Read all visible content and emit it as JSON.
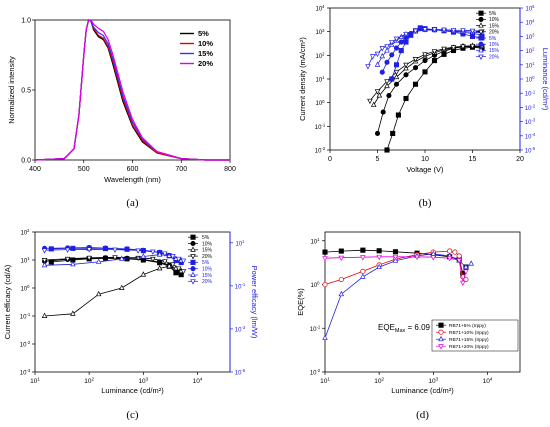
{
  "figure": {
    "panel_labels": [
      "(a)",
      "(b)",
      "(c)",
      "(d)"
    ]
  },
  "chart_data": [
    {
      "panel": "a",
      "type": "line",
      "xlabel": "Wavelength (nm)",
      "ylabel": "Normalized intensity",
      "xlim": [
        400,
        800
      ],
      "ylim": [
        0.0,
        1.0
      ],
      "xticks": [
        400,
        500,
        600,
        700,
        800
      ],
      "yticks": [
        0.0,
        0.5,
        1.0
      ],
      "legend_position": "top-right",
      "series": [
        {
          "name": "5%",
          "color": "#000000",
          "x": [
            400,
            460,
            480,
            490,
            500,
            505,
            510,
            515,
            520,
            530,
            540,
            550,
            560,
            570,
            580,
            600,
            620,
            650,
            700,
            750,
            800
          ],
          "y": [
            0,
            0.01,
            0.08,
            0.32,
            0.75,
            0.93,
            1.0,
            0.99,
            0.93,
            0.88,
            0.86,
            0.8,
            0.68,
            0.55,
            0.42,
            0.24,
            0.13,
            0.05,
            0.01,
            0,
            0
          ]
        },
        {
          "name": "10%",
          "color": "#e00000",
          "x": [
            400,
            460,
            480,
            490,
            500,
            505,
            510,
            515,
            520,
            530,
            540,
            550,
            560,
            570,
            580,
            600,
            620,
            650,
            700,
            750,
            800
          ],
          "y": [
            0,
            0.01,
            0.08,
            0.32,
            0.75,
            0.93,
            1.0,
            0.99,
            0.94,
            0.89,
            0.87,
            0.81,
            0.7,
            0.57,
            0.44,
            0.25,
            0.14,
            0.05,
            0.01,
            0,
            0
          ]
        },
        {
          "name": "15%",
          "color": "#3030ff",
          "x": [
            400,
            460,
            480,
            490,
            500,
            505,
            510,
            515,
            520,
            530,
            540,
            550,
            560,
            570,
            580,
            600,
            620,
            650,
            700,
            750,
            800
          ],
          "y": [
            0,
            0.01,
            0.08,
            0.32,
            0.75,
            0.93,
            1.0,
            0.99,
            0.95,
            0.91,
            0.89,
            0.83,
            0.72,
            0.59,
            0.46,
            0.27,
            0.15,
            0.06,
            0.01,
            0,
            0
          ]
        },
        {
          "name": "20%",
          "color": "#e000e0",
          "x": [
            400,
            460,
            480,
            490,
            500,
            505,
            510,
            515,
            520,
            530,
            540,
            550,
            560,
            570,
            580,
            600,
            620,
            650,
            700,
            750,
            800
          ],
          "y": [
            0,
            0.01,
            0.08,
            0.32,
            0.75,
            0.93,
            1.0,
            1.0,
            0.97,
            0.94,
            0.92,
            0.86,
            0.75,
            0.62,
            0.49,
            0.29,
            0.16,
            0.06,
            0.01,
            0,
            0
          ]
        }
      ]
    },
    {
      "panel": "b",
      "type": "line",
      "xlabel": "Voltage (V)",
      "ylabel": "Current density (mA/cm²)",
      "y2label": "Luminance (cd/m²)",
      "xlim": [
        0,
        20
      ],
      "ylim_log10": [
        -2,
        4
      ],
      "y2lim_log10": [
        -5,
        5
      ],
      "xticks": [
        0,
        5,
        10,
        15,
        20
      ],
      "yscale": "log",
      "y2scale": "log",
      "legend_position": "top-left",
      "series": [
        {
          "name": "5%",
          "axis": "left",
          "color": "#000000",
          "marker": "square",
          "x": [
            6,
            6.6,
            7.2,
            8,
            9,
            10,
            11,
            12,
            13,
            14,
            15,
            16
          ],
          "y": [
            0.01,
            0.05,
            0.3,
            1.5,
            6,
            20,
            60,
            110,
            160,
            200,
            220,
            200
          ]
        },
        {
          "name": "10%",
          "axis": "left",
          "color": "#000000",
          "marker": "circle",
          "x": [
            5,
            5.6,
            6.2,
            7,
            8,
            9,
            10,
            11,
            12,
            13,
            14,
            15,
            16
          ],
          "y": [
            0.05,
            0.4,
            2,
            6,
            15,
            30,
            60,
            100,
            150,
            200,
            230,
            240,
            220
          ]
        },
        {
          "name": "15%",
          "axis": "left",
          "color": "#000000",
          "marker": "triangle",
          "x": [
            4.6,
            5.2,
            6,
            7,
            8,
            9,
            10,
            11,
            12,
            13,
            14,
            15,
            16
          ],
          "y": [
            0.8,
            2,
            5,
            12,
            28,
            55,
            90,
            130,
            170,
            210,
            240,
            250,
            240
          ]
        },
        {
          "name": "20%",
          "axis": "left",
          "color": "#000000",
          "marker": "triangle-down",
          "x": [
            4.2,
            5,
            6,
            7,
            8,
            9,
            10,
            11,
            12,
            13,
            14,
            15,
            16
          ],
          "y": [
            1.2,
            3,
            8,
            20,
            40,
            70,
            110,
            150,
            190,
            220,
            240,
            250,
            245
          ]
        },
        {
          "name": "5%",
          "axis": "right",
          "color": "#2020e0",
          "marker": "square",
          "x": [
            6.5,
            7,
            7.5,
            8,
            8.5,
            9,
            9.5,
            10,
            11,
            12,
            13,
            14,
            15,
            16
          ],
          "y": [
            1,
            10,
            100,
            400,
            1200,
            2500,
            4000,
            3500,
            3000,
            2500,
            2000,
            1500,
            1000,
            800
          ]
        },
        {
          "name": "10%",
          "axis": "right",
          "color": "#2020e0",
          "marker": "circle",
          "x": [
            5.5,
            6,
            6.5,
            7,
            7.5,
            8,
            8.5,
            9,
            10,
            11,
            12,
            13,
            14,
            15,
            16
          ],
          "y": [
            3,
            15,
            50,
            150,
            400,
            900,
            1600,
            2400,
            3000,
            2900,
            2600,
            2200,
            1900,
            1600,
            1300
          ]
        },
        {
          "name": "15%",
          "axis": "right",
          "color": "#2020e0",
          "marker": "triangle",
          "x": [
            5,
            5.5,
            6,
            6.5,
            7,
            7.5,
            8,
            9,
            10,
            11,
            12,
            13,
            14,
            15,
            16
          ],
          "y": [
            10,
            40,
            100,
            250,
            500,
            900,
            1400,
            2200,
            2800,
            2800,
            2600,
            2400,
            2200,
            2000,
            1800
          ]
        },
        {
          "name": "20%",
          "axis": "right",
          "color": "#2020e0",
          "marker": "triangle-down",
          "x": [
            4,
            4.5,
            5,
            5.5,
            6,
            6.5,
            7,
            8,
            9,
            10,
            11,
            12,
            13,
            14,
            15,
            16
          ],
          "y": [
            8,
            40,
            60,
            150,
            200,
            400,
            700,
            1500,
            2500,
            3200,
            3100,
            3000,
            2800,
            2700,
            2500,
            2300
          ]
        }
      ]
    },
    {
      "panel": "c",
      "type": "line",
      "xlabel": "Luminance (cd/m²)",
      "ylabel": "Current efficacy (cd/A)",
      "y2label": "Power efficacy (lm/W)",
      "xscale": "log",
      "xlim_log10": [
        1,
        4.6
      ],
      "yscale": "log",
      "ylim_log10": [
        -3,
        2
      ],
      "y2scale": "log",
      "y2lim_log10": [
        -5,
        1.5
      ],
      "legend_position": "top-right",
      "series": [
        {
          "name": "5%",
          "axis": "left",
          "color": "#000000",
          "marker": "square",
          "x": [
            20,
            50,
            100,
            200,
            500,
            1000,
            2000,
            3000,
            4000,
            5000
          ],
          "y": [
            8.5,
            10,
            11,
            11.5,
            11,
            10,
            8,
            6,
            3.5,
            3
          ]
        },
        {
          "name": "10%",
          "axis": "left",
          "color": "#000000",
          "marker": "circle",
          "x": [
            15,
            40,
            100,
            200,
            500,
            1000,
            2000,
            3000,
            4000,
            5000
          ],
          "y": [
            9,
            10.5,
            11.5,
            12,
            11.5,
            10.5,
            8.5,
            6.5,
            4,
            3.5
          ]
        },
        {
          "name": "15%",
          "axis": "left",
          "color": "#000000",
          "marker": "triangle",
          "x": [
            15,
            50,
            150,
            400,
            1000,
            2000,
            3000,
            4000,
            5000
          ],
          "y": [
            0.1,
            0.12,
            0.6,
            1,
            3,
            5,
            6,
            5,
            4
          ]
        },
        {
          "name": "20%",
          "axis": "left",
          "color": "#000000",
          "marker": "triangle-down",
          "x": [
            15,
            40,
            100,
            300,
            800,
            1500,
            2500,
            3500,
            4500,
            5500
          ],
          "y": [
            10,
            11,
            12,
            12.5,
            12,
            11,
            9,
            7,
            5,
            4
          ]
        },
        {
          "name": "5%",
          "axis": "right",
          "color": "#2020e0",
          "marker": "square",
          "x": [
            20,
            50,
            100,
            200,
            500,
            1000,
            2000,
            3000,
            4000,
            5000
          ],
          "y": [
            5.2,
            5.5,
            5.6,
            5.4,
            5,
            4.3,
            3.5,
            2.5,
            1.5,
            1.2
          ]
        },
        {
          "name": "10%",
          "axis": "right",
          "color": "#2020e0",
          "marker": "circle",
          "x": [
            15,
            40,
            100,
            200,
            500,
            1000,
            2000,
            3000,
            4000,
            5000
          ],
          "y": [
            5.5,
            5.8,
            6,
            5.7,
            5.2,
            4.5,
            3.6,
            2.6,
            1.6,
            1.3
          ]
        },
        {
          "name": "15%",
          "axis": "right",
          "color": "#2020e0",
          "marker": "triangle",
          "x": [
            15,
            50,
            150,
            400,
            1000,
            2000,
            3000,
            4000,
            5000
          ],
          "y": [
            0.9,
            1,
            1.3,
            1.8,
            2.3,
            2.8,
            2.5,
            1.8,
            1.5
          ]
        },
        {
          "name": "20%",
          "axis": "right",
          "color": "#2020e0",
          "marker": "triangle-down",
          "x": [
            15,
            40,
            100,
            300,
            800,
            1500,
            2500,
            3500,
            4500,
            5500
          ],
          "y": [
            4.5,
            4.8,
            5,
            4.8,
            4.4,
            3.9,
            3.2,
            2.4,
            1.8,
            1.5
          ]
        }
      ]
    },
    {
      "panel": "d",
      "type": "line",
      "xlabel": "Luminance (cd/m²)",
      "ylabel": "EQE(%)",
      "xscale": "log",
      "xlim_log10": [
        1,
        4.6
      ],
      "yscale": "log",
      "ylim_log10": [
        -2,
        1.2
      ],
      "annotation": "EQE",
      "annotation_subscript": "Max",
      "annotation_value": "= 6.09 %",
      "legend_position": "bottom-right",
      "series": [
        {
          "name": "RB71+5% (Irppy)",
          "color": "#000000",
          "marker": "square",
          "x": [
            10,
            20,
            50,
            100,
            200,
            500,
            1000,
            2000,
            3000,
            3500,
            4000
          ],
          "y": [
            5.5,
            5.8,
            6.09,
            5.9,
            5.6,
            5.2,
            4.8,
            4.3,
            3.8,
            1.8,
            2.5
          ]
        },
        {
          "name": "RB71+10% (Irppy)",
          "color": "#e00000",
          "marker": "circle",
          "x": [
            10,
            20,
            50,
            100,
            200,
            500,
            1000,
            2000,
            2500,
            3000,
            3500,
            4000
          ],
          "y": [
            1,
            1.3,
            2,
            2.8,
            3.8,
            4.8,
            5.5,
            5.8,
            5.5,
            4.5,
            1.5,
            1.3
          ]
        },
        {
          "name": "RB71+15% (Irppy)",
          "color": "#2020e0",
          "marker": "triangle",
          "x": [
            10,
            20,
            50,
            100,
            200,
            500,
            1000,
            2000,
            3000,
            4000,
            5000
          ],
          "y": [
            0.06,
            0.6,
            1.5,
            2.5,
            3.5,
            4.5,
            5,
            4.5,
            3.5,
            2.5,
            3
          ]
        },
        {
          "name": "RB71+20% (Irppy)",
          "color": "#e000e0",
          "marker": "triangle-down",
          "x": [
            10,
            20,
            50,
            100,
            200,
            500,
            1000,
            2000,
            3000,
            3500,
            4000
          ],
          "y": [
            4,
            4.1,
            4.2,
            4.3,
            4.3,
            4.3,
            4.2,
            4,
            3.6,
            1.1,
            2
          ]
        }
      ]
    }
  ]
}
